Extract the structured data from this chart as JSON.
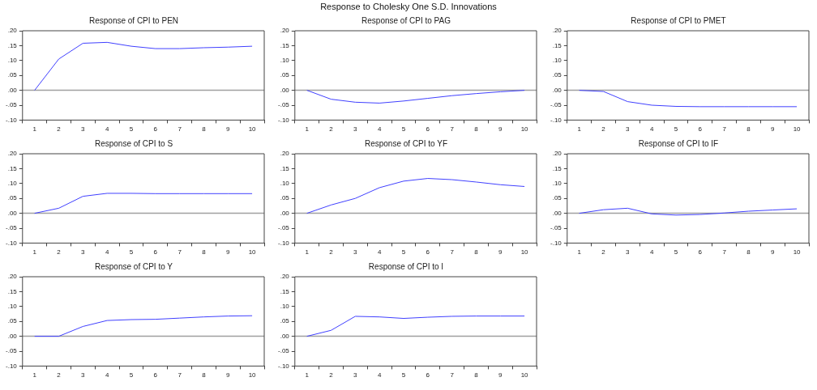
{
  "chart_data": [
    {
      "type": "line",
      "title": "Response of CPI to PEN",
      "categories": [
        "1",
        "2",
        "3",
        "4",
        "5",
        "6",
        "7",
        "8",
        "9",
        "10"
      ],
      "color": "#4040ff",
      "values": [
        0,
        0.105,
        0.158,
        0.161,
        0.148,
        0.14,
        0.14,
        0.143,
        0.145,
        0.148
      ],
      "ylim": [
        -0.1,
        0.2
      ],
      "yticks": [
        {
          "value": -0.1,
          "label": "-.10"
        },
        {
          "value": -0.05,
          "label": "-.05"
        },
        {
          "value": 0,
          "label": ".00"
        },
        {
          "value": 0.05,
          "label": ".05"
        },
        {
          "value": 0.1,
          "label": ".10"
        },
        {
          "value": 0.15,
          "label": ".15"
        },
        {
          "value": 0.2,
          "label": ".20"
        }
      ],
      "ref_lines": [
        {
          "axis": "y",
          "value": 0,
          "color": "#a0a0a0"
        }
      ]
    },
    {
      "type": "line",
      "title": "Response of CPI to PAG",
      "annotations": [
        "Response to Cholesky One S.D. Innovations"
      ],
      "categories": [
        "1",
        "2",
        "3",
        "4",
        "5",
        "6",
        "7",
        "8",
        "9",
        "10"
      ],
      "color": "#4040ff",
      "values": [
        0,
        -0.03,
        -0.04,
        -0.043,
        -0.036,
        -0.027,
        -0.018,
        -0.011,
        -0.005,
        0
      ],
      "ylim": [
        -0.1,
        0.2
      ],
      "yticks": [
        {
          "value": -0.1,
          "label": "-.10"
        },
        {
          "value": -0.05,
          "label": "-.05"
        },
        {
          "value": 0,
          "label": ".00"
        },
        {
          "value": 0.05,
          "label": ".05"
        },
        {
          "value": 0.1,
          "label": ".10"
        },
        {
          "value": 0.15,
          "label": ".15"
        },
        {
          "value": 0.2,
          "label": ".20"
        }
      ],
      "ref_lines": [
        {
          "axis": "y",
          "value": 0,
          "color": "#a0a0a0"
        }
      ]
    },
    {
      "type": "line",
      "title": "Response of CPI to PMET",
      "categories": [
        "1",
        "2",
        "3",
        "4",
        "5",
        "6",
        "7",
        "8",
        "9",
        "10"
      ],
      "color": "#4040ff",
      "values": [
        0,
        -0.004,
        -0.038,
        -0.05,
        -0.054,
        -0.055,
        -0.055,
        -0.055,
        -0.055,
        -0.055
      ],
      "ylim": [
        -0.1,
        0.2
      ],
      "yticks": [
        {
          "value": -0.1,
          "label": "-.10"
        },
        {
          "value": -0.05,
          "label": "-.05"
        },
        {
          "value": 0,
          "label": ".00"
        },
        {
          "value": 0.05,
          "label": ".05"
        },
        {
          "value": 0.1,
          "label": ".10"
        },
        {
          "value": 0.15,
          "label": ".15"
        },
        {
          "value": 0.2,
          "label": ".20"
        }
      ],
      "ref_lines": [
        {
          "axis": "y",
          "value": 0,
          "color": "#a0a0a0"
        }
      ]
    },
    {
      "type": "line",
      "title": "Response of CPI to S",
      "categories": [
        "1",
        "2",
        "3",
        "4",
        "5",
        "6",
        "7",
        "8",
        "9",
        "10"
      ],
      "color": "#4040ff",
      "values": [
        0,
        0.017,
        0.057,
        0.067,
        0.067,
        0.066,
        0.066,
        0.066,
        0.066,
        0.066
      ],
      "ylim": [
        -0.1,
        0.2
      ],
      "yticks": [
        {
          "value": -0.1,
          "label": "-.10"
        },
        {
          "value": -0.05,
          "label": "-.05"
        },
        {
          "value": 0,
          "label": ".00"
        },
        {
          "value": 0.05,
          "label": ".05"
        },
        {
          "value": 0.1,
          "label": ".10"
        },
        {
          "value": 0.15,
          "label": ".15"
        },
        {
          "value": 0.2,
          "label": ".20"
        }
      ],
      "ref_lines": [
        {
          "axis": "y",
          "value": 0,
          "color": "#a0a0a0"
        }
      ]
    },
    {
      "type": "line",
      "title": "Response of CPI to YF",
      "categories": [
        "1",
        "2",
        "3",
        "4",
        "5",
        "6",
        "7",
        "8",
        "9",
        "10"
      ],
      "color": "#4040ff",
      "values": [
        0,
        0.028,
        0.05,
        0.086,
        0.108,
        0.117,
        0.113,
        0.105,
        0.096,
        0.09
      ],
      "ylim": [
        -0.1,
        0.2
      ],
      "yticks": [
        {
          "value": -0.1,
          "label": "-.10"
        },
        {
          "value": -0.05,
          "label": "-.05"
        },
        {
          "value": 0,
          "label": ".00"
        },
        {
          "value": 0.05,
          "label": ".05"
        },
        {
          "value": 0.1,
          "label": ".10"
        },
        {
          "value": 0.15,
          "label": ".15"
        },
        {
          "value": 0.2,
          "label": ".20"
        }
      ],
      "ref_lines": [
        {
          "axis": "y",
          "value": 0,
          "color": "#a0a0a0"
        }
      ]
    },
    {
      "type": "line",
      "title": "Response of CPI to IF",
      "categories": [
        "1",
        "2",
        "3",
        "4",
        "5",
        "6",
        "7",
        "8",
        "9",
        "10"
      ],
      "color": "#4040ff",
      "values": [
        0,
        0.012,
        0.017,
        -0.002,
        -0.006,
        -0.004,
        0.001,
        0.007,
        0.011,
        0.015
      ],
      "ylim": [
        -0.1,
        0.2
      ],
      "yticks": [
        {
          "value": -0.1,
          "label": "-.10"
        },
        {
          "value": -0.05,
          "label": "-.05"
        },
        {
          "value": 0,
          "label": ".00"
        },
        {
          "value": 0.05,
          "label": ".05"
        },
        {
          "value": 0.1,
          "label": ".10"
        },
        {
          "value": 0.15,
          "label": ".15"
        },
        {
          "value": 0.2,
          "label": ".20"
        }
      ],
      "ref_lines": [
        {
          "axis": "y",
          "value": 0,
          "color": "#a0a0a0"
        }
      ]
    },
    {
      "type": "line",
      "title": "Response of CPI to Y",
      "categories": [
        "1",
        "2",
        "3",
        "4",
        "5",
        "6",
        "7",
        "8",
        "9",
        "10"
      ],
      "color": "#4040ff",
      "values": [
        0,
        0,
        0.033,
        0.053,
        0.056,
        0.057,
        0.061,
        0.065,
        0.068,
        0.069
      ],
      "ylim": [
        -0.1,
        0.2
      ],
      "yticks": [
        {
          "value": -0.1,
          "label": "-.10"
        },
        {
          "value": -0.05,
          "label": "-.05"
        },
        {
          "value": 0,
          "label": ".00"
        },
        {
          "value": 0.05,
          "label": ".05"
        },
        {
          "value": 0.1,
          "label": ".10"
        },
        {
          "value": 0.15,
          "label": ".15"
        },
        {
          "value": 0.2,
          "label": ".20"
        }
      ],
      "ref_lines": [
        {
          "axis": "y",
          "value": 0,
          "color": "#a0a0a0"
        }
      ]
    },
    {
      "type": "line",
      "title": "Response of CPI to I",
      "categories": [
        "1",
        "2",
        "3",
        "4",
        "5",
        "6",
        "7",
        "8",
        "9",
        "10"
      ],
      "color": "#4040ff",
      "values": [
        0,
        0.02,
        0.067,
        0.065,
        0.06,
        0.064,
        0.067,
        0.068,
        0.068,
        0.068
      ],
      "ylim": [
        -0.1,
        0.2
      ],
      "yticks": [
        {
          "value": -0.1,
          "label": "-.10"
        },
        {
          "value": -0.05,
          "label": "-.05"
        },
        {
          "value": 0,
          "label": ".00"
        },
        {
          "value": 0.05,
          "label": ".05"
        },
        {
          "value": 0.1,
          "label": ".10"
        },
        {
          "value": 0.15,
          "label": ".15"
        },
        {
          "value": 0.2,
          "label": ".20"
        }
      ],
      "ref_lines": [
        {
          "axis": "y",
          "value": 0,
          "color": "#a0a0a0"
        }
      ]
    }
  ]
}
